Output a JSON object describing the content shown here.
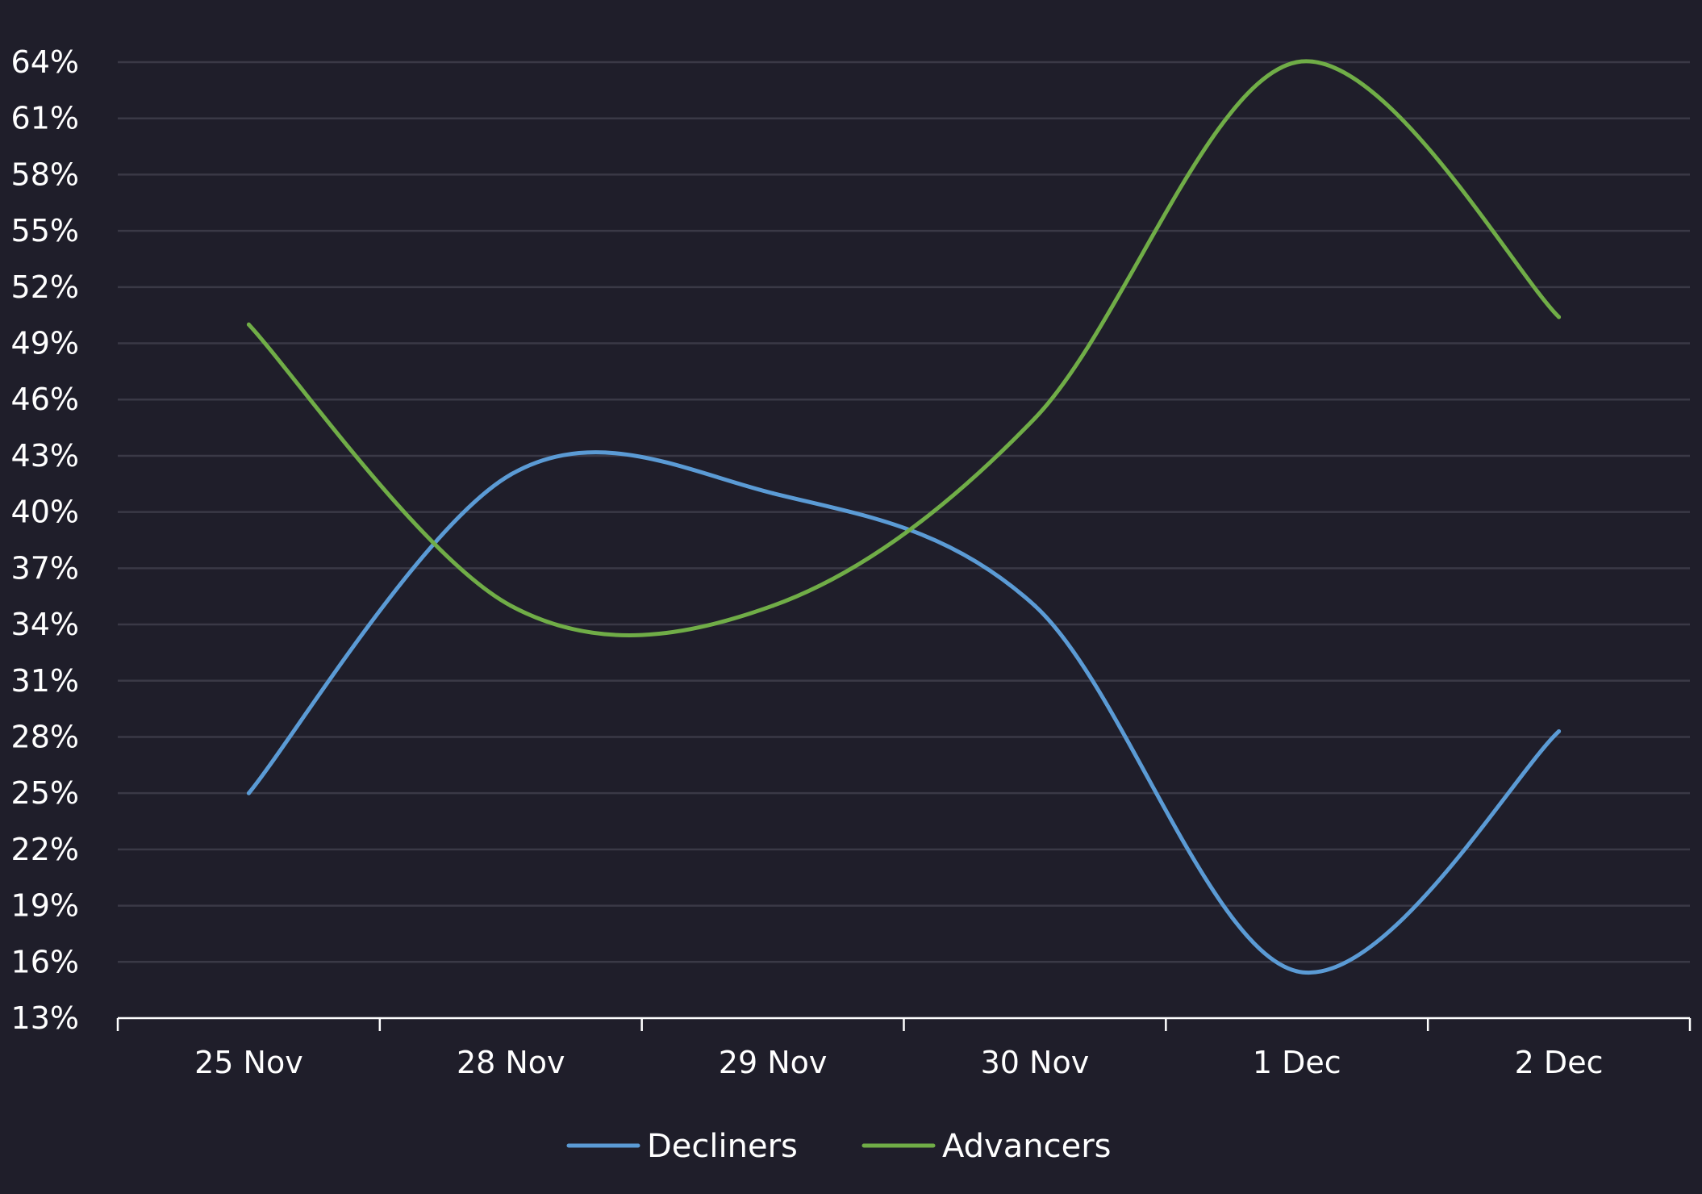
{
  "chart_data": {
    "type": "line",
    "title": "",
    "xlabel": "",
    "ylabel": "",
    "categories": [
      "25 Nov",
      "28 Nov",
      "29 Nov",
      "30 Nov",
      "1 Dec",
      "2 Dec"
    ],
    "y_ticks": [
      "13%",
      "16%",
      "19%",
      "22%",
      "25%",
      "28%",
      "31%",
      "34%",
      "37%",
      "40%",
      "43%",
      "46%",
      "49%",
      "52%",
      "55%",
      "58%",
      "61%",
      "64%"
    ],
    "ylim": [
      13,
      64
    ],
    "y_unit": "%",
    "grid": true,
    "smooth": true,
    "legend_position": "bottom",
    "background_color": "#1f1e2a",
    "gridline_color": "#3a3946",
    "axis_color": "#ffffff",
    "text_color": "#ffffff",
    "series": [
      {
        "name": "Decliners",
        "color": "#5b9bd5",
        "values": [
          25,
          42,
          41,
          35,
          15.5,
          28.3
        ]
      },
      {
        "name": "Advancers",
        "color": "#70ad47",
        "values": [
          50,
          35,
          35,
          45,
          64,
          50.4
        ]
      }
    ]
  }
}
